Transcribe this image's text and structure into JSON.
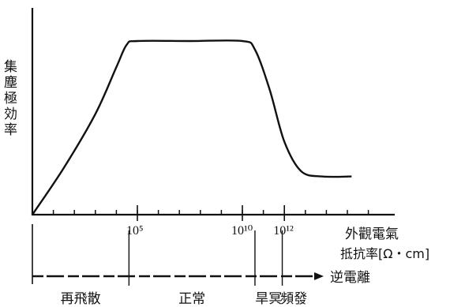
{
  "chart_data": {
    "type": "line",
    "ylabel": "集塵極効率",
    "xlabel_line1": "外觀電氣",
    "xlabel_line2": "抵抗率[Ω・cm]",
    "x_scale": "log",
    "xticks": [
      {
        "label": "10⁵",
        "value": 5
      },
      {
        "label": "10¹⁰",
        "value": 10
      },
      {
        "label": "10¹²",
        "value": 12
      }
    ],
    "series": [
      {
        "points": [
          {
            "x": 0.0,
            "y": 0.0
          },
          {
            "x": 1.5,
            "y": 0.27
          },
          {
            "x": 3.0,
            "y": 0.58
          },
          {
            "x": 4.0,
            "y": 0.85
          },
          {
            "x": 4.5,
            "y": 0.98
          },
          {
            "x": 5.0,
            "y": 1.0
          },
          {
            "x": 7.5,
            "y": 1.0
          },
          {
            "x": 10.0,
            "y": 1.0
          },
          {
            "x": 10.6,
            "y": 0.95
          },
          {
            "x": 11.3,
            "y": 0.72
          },
          {
            "x": 12.0,
            "y": 0.42
          },
          {
            "x": 12.8,
            "y": 0.25
          },
          {
            "x": 13.8,
            "y": 0.22
          },
          {
            "x": 15.2,
            "y": 0.22
          }
        ]
      }
    ],
    "regions_axis_label": "逆電離",
    "regions": [
      {
        "label": "再飛散",
        "start": 0,
        "end": 4.6
      },
      {
        "label": "正常",
        "start": 4.6,
        "end": 10.6
      },
      {
        "label": "旱冥",
        "start": 10.6,
        "end": 11.9
      },
      {
        "label": "頻發",
        "start": 11.9,
        "end": 13.0
      }
    ],
    "grid": false
  }
}
